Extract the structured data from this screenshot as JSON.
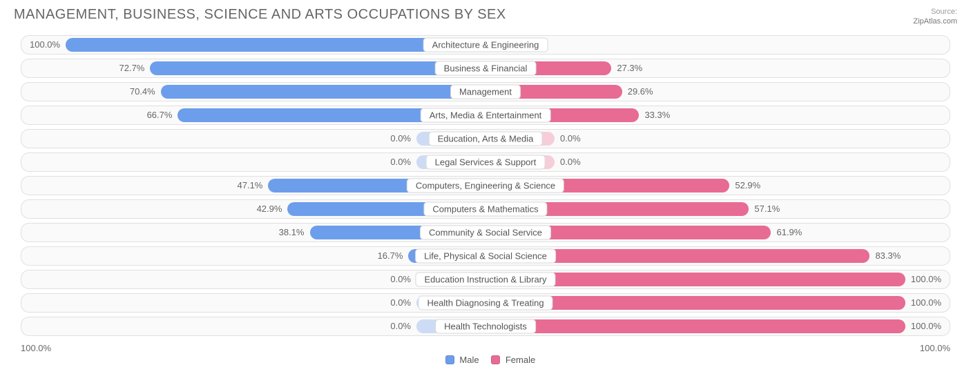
{
  "title": "Management, Business, Science and Arts Occupations by Sex",
  "source_label": "Source:",
  "source_name": "ZipAtlas.com",
  "chart": {
    "type": "diverging-bar",
    "axis_left": "100.0%",
    "axis_right": "100.0%",
    "male_color": "#6d9eeb",
    "female_color": "#e86b94",
    "stub_male_color": "#a8c3ef",
    "stub_female_color": "#f2a9c0",
    "background_color": "#ffffff",
    "row_bg": "#fafafa",
    "row_border": "#e0e0e0",
    "label_bg": "#ffffff",
    "label_border": "#d8d8d8",
    "text_color": "#666666",
    "bar_radius": 10,
    "title_fontsize": 20,
    "label_fontsize": 13,
    "legend": {
      "male": "Male",
      "female": "Female"
    },
    "rows": [
      {
        "category": "Architecture & Engineering",
        "male": 100.0,
        "female": 0.0,
        "stub": false
      },
      {
        "category": "Business & Financial",
        "male": 72.7,
        "female": 27.3,
        "stub": false
      },
      {
        "category": "Management",
        "male": 70.4,
        "female": 29.6,
        "stub": false
      },
      {
        "category": "Arts, Media & Entertainment",
        "male": 66.7,
        "female": 33.3,
        "stub": false
      },
      {
        "category": "Education, Arts & Media",
        "male": 0.0,
        "female": 0.0,
        "stub": true
      },
      {
        "category": "Legal Services & Support",
        "male": 0.0,
        "female": 0.0,
        "stub": true
      },
      {
        "category": "Computers, Engineering & Science",
        "male": 47.1,
        "female": 52.9,
        "stub": false
      },
      {
        "category": "Computers & Mathematics",
        "male": 42.9,
        "female": 57.1,
        "stub": false
      },
      {
        "category": "Community & Social Service",
        "male": 38.1,
        "female": 61.9,
        "stub": false
      },
      {
        "category": "Life, Physical & Social Science",
        "male": 16.7,
        "female": 83.3,
        "stub": false
      },
      {
        "category": "Education Instruction & Library",
        "male": 0.0,
        "female": 100.0,
        "stub": true
      },
      {
        "category": "Health Diagnosing & Treating",
        "male": 0.0,
        "female": 100.0,
        "stub": true
      },
      {
        "category": "Health Technologists",
        "male": 0.0,
        "female": 100.0,
        "stub": true
      }
    ]
  }
}
